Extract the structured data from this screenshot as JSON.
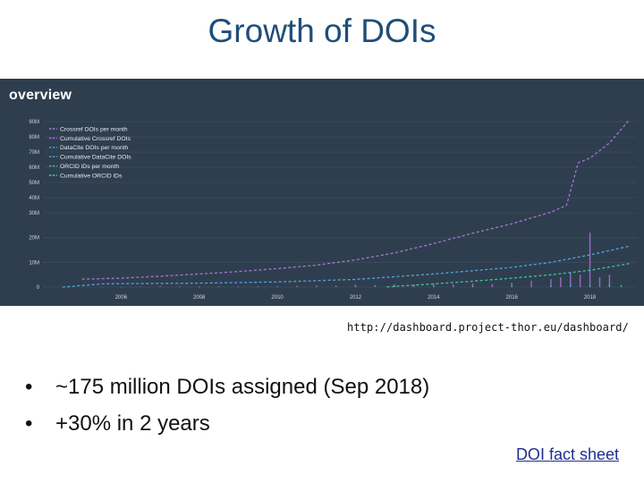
{
  "slide": {
    "title": "Growth of DOIs",
    "source_url": "http://dashboard.project-thor.eu/dashboard/",
    "bullets": [
      "~175 million DOIs assigned (Sep 2018)",
      "+30% in 2 years"
    ],
    "fact_link": "DOI fact sheet"
  },
  "colors": {
    "dashboard_bg": "#2f3e4e",
    "title_color": "#1f4e79",
    "crossref": "#a873d9",
    "datacite": "#4aa6e8",
    "orcid": "#3ec7a0"
  },
  "dashboard": {
    "title": "overview"
  },
  "chart_data": {
    "type": "line",
    "title": "",
    "xlabel": "",
    "ylabel": "",
    "legend_position": "top-left",
    "grid": true,
    "x_ticks": [
      "2006",
      "2008",
      "2010",
      "2012",
      "2014",
      "2016",
      "2018"
    ],
    "y_ticks": [
      "0",
      "10M",
      "20M",
      "30M",
      "40M",
      "50M",
      "60M",
      "70M",
      "80M",
      "90M"
    ],
    "xlim": [
      2004.0,
      2019.2
    ],
    "series": [
      {
        "name": "Crossref DOIs per month",
        "style": "bars",
        "color": "#a873d9",
        "x": [
          2005.5,
          2006.0,
          2006.5,
          2007.0,
          2007.5,
          2008.0,
          2008.5,
          2009.0,
          2009.5,
          2010.0,
          2010.5,
          2011.0,
          2011.5,
          2012.0,
          2012.5,
          2013.0,
          2013.5,
          2014.0,
          2014.5,
          2015.0,
          2015.5,
          2016.0,
          2016.5,
          2017.0,
          2017.25,
          2017.5,
          2017.75,
          2018.0,
          2018.25,
          2018.5
        ],
        "values": [
          0.1,
          0.1,
          0.2,
          0.4,
          0.3,
          0.3,
          0.3,
          0.3,
          0.4,
          0.4,
          0.5,
          0.7,
          0.6,
          1.0,
          0.8,
          1.2,
          1.0,
          1.3,
          1.1,
          1.5,
          1.2,
          1.8,
          2.6,
          3.2,
          4.0,
          6.0,
          5.0,
          22.0,
          4.0,
          5.0
        ]
      },
      {
        "name": "Cumulative Crossref DOIs",
        "style": "dashed",
        "color": "#a873d9",
        "x": [
          2005.0,
          2006.0,
          2007.0,
          2008.0,
          2009.0,
          2010.0,
          2011.0,
          2012.0,
          2013.0,
          2014.0,
          2015.0,
          2016.0,
          2017.0,
          2017.4,
          2017.7,
          2018.0,
          2018.5,
          2019.0
        ],
        "values": [
          3.2,
          3.6,
          4.4,
          5.3,
          6.3,
          7.5,
          8.9,
          11.0,
          13.8,
          17.6,
          21.8,
          25.6,
          30.5,
          35.0,
          63.0,
          66.0,
          76.0,
          91.0
        ]
      },
      {
        "name": "DataCite DOIs per month",
        "style": "bars",
        "color": "#4aa6e8",
        "x": [
          2008.0,
          2010.0,
          2012.0,
          2014.0,
          2016.0,
          2017.5,
          2018.5
        ],
        "values": [
          0.1,
          0.2,
          0.3,
          0.5,
          0.7,
          1.2,
          1.5
        ]
      },
      {
        "name": "Cumulative DataCite DOIs",
        "style": "dashed",
        "color": "#4aa6e8",
        "x": [
          2004.5,
          2005.5,
          2006.0,
          2008.0,
          2010.0,
          2012.0,
          2013.0,
          2014.0,
          2015.0,
          2016.0,
          2017.0,
          2018.0,
          2019.0
        ],
        "values": [
          0.0,
          1.3,
          1.4,
          1.6,
          2.1,
          3.1,
          4.2,
          5.3,
          6.6,
          8.0,
          10.0,
          13.0,
          16.5
        ]
      },
      {
        "name": "ORCID iDs per month",
        "style": "bars",
        "color": "#3ec7a0",
        "x": [
          2013.0,
          2014.0,
          2015.0,
          2016.0,
          2017.0,
          2018.0,
          2018.8
        ],
        "values": [
          0.2,
          0.3,
          0.4,
          0.5,
          0.6,
          0.8,
          0.9
        ]
      },
      {
        "name": "Cumulative ORCID iDs",
        "style": "dashed",
        "color": "#3ec7a0",
        "x": [
          2012.8,
          2013.5,
          2014.0,
          2015.0,
          2016.0,
          2017.0,
          2018.0,
          2019.0
        ],
        "values": [
          0.1,
          0.8,
          1.3,
          2.4,
          3.6,
          5.0,
          6.8,
          9.5
        ]
      }
    ]
  }
}
